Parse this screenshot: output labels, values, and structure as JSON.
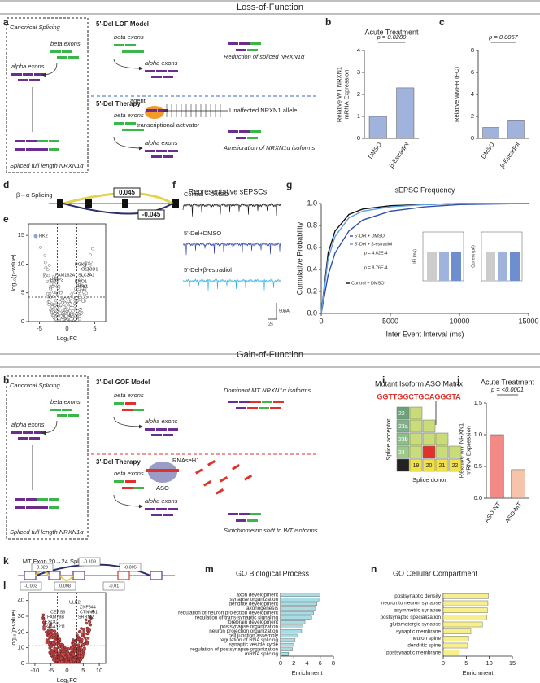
{
  "headers": {
    "lof": "Loss-of-Function",
    "gof": "Gain-of-Function"
  },
  "panel_labels": [
    "a",
    "b",
    "c",
    "d",
    "e",
    "f",
    "g",
    "h",
    "i",
    "j",
    "k",
    "l",
    "m",
    "n"
  ],
  "a": {
    "canonical": "Canonical Splicing",
    "beta1": "beta exons",
    "alpha1": "alpha exons",
    "full": "Spliced full length NRXN1α",
    "model": "5'-Del LOF Model",
    "beta2": "beta exons",
    "alpha2": "alpha exons",
    "reduction": "Reduction of spliced NRXN1α",
    "therapy": "5'-Del Therapy",
    "beta3": "beta exons",
    "agent": "agent",
    "activator": "transcriptional activator",
    "unaffected": "Unaffected NRXN1 allele",
    "alpha3": "alpha exons",
    "amelioration": "Amelioration of NRXN1α isoforms"
  },
  "b": {
    "type": "bar",
    "title": "Acute Treatment",
    "ylabel": [
      "Relative WT NRXN1",
      "mRNA Expression"
    ],
    "categories": [
      "DMSO",
      "β-Estradiol"
    ],
    "values": [
      1.0,
      2.3
    ],
    "colors": [
      "#9fb3dc",
      "#9fb3dc"
    ],
    "ylim": [
      0,
      4
    ],
    "yticks": [
      0,
      1,
      2,
      3,
      4
    ],
    "annotation": "p = 0.0280"
  },
  "c": {
    "type": "bar",
    "ylabel": [
      "Relative wMFR (FC)"
    ],
    "categories": [
      "DMSO",
      "β-Estradiol"
    ],
    "values": [
      1.0,
      1.6
    ],
    "colors": [
      "#9fb3dc",
      "#9fb3dc"
    ],
    "ylim": [
      0,
      8
    ],
    "yticks": [
      0,
      2,
      4,
      6,
      8
    ],
    "annotation": "p = 0.0057"
  },
  "d": {
    "title": "β→α Splicing",
    "values": [
      0.045,
      -0.045
    ]
  },
  "e": {
    "type": "volcano",
    "xlabel": "Log₂FC",
    "ylabel": "log₁₀(p-value)",
    "xlim": [
      -7,
      7
    ],
    "xticks": [
      -5,
      0,
      5
    ],
    "ylim": [
      0,
      17
    ],
    "yticks": [
      0,
      5,
      10,
      15
    ],
    "genes": [
      "HK2",
      "PGK1",
      "GLT8D1",
      "FAM162A",
      "BNIP3",
      "SLC2A1",
      "ENO1",
      "PDK1"
    ]
  },
  "f": {
    "title": "Representative sEPSCs",
    "traces": [
      "Control + DMSO",
      "5'-Del+DMSO",
      "5'-Del+β-estradiol"
    ],
    "scale_y": "50pA",
    "scale_x": "2s"
  },
  "g": {
    "type": "line",
    "title": "sEPSC Frequency",
    "xlabel": "Inter Event Interval (ms)",
    "ylabel": "Cumulative Probability",
    "x": [
      0,
      500,
      1000,
      2000,
      3000,
      5000,
      7500,
      10000,
      15000
    ],
    "series": [
      {
        "name": "Control + DMSO",
        "color": "#111111",
        "values": [
          0,
          0.55,
          0.75,
          0.9,
          0.95,
          0.98,
          0.99,
          1.0,
          1.0
        ]
      },
      {
        "name": "5'-Del + DMSO",
        "color": "#2f4fa8",
        "values": [
          0,
          0.35,
          0.55,
          0.75,
          0.85,
          0.93,
          0.97,
          0.99,
          1.0
        ]
      },
      {
        "name": "5'-Del + β-estradiol",
        "color": "#5aa0e0",
        "values": [
          0,
          0.5,
          0.7,
          0.87,
          0.93,
          0.97,
          0.99,
          1.0,
          1.0
        ]
      }
    ],
    "xlim": [
      0,
      15000
    ],
    "xticks": [
      0,
      5000,
      10000,
      15000
    ],
    "ylim": [
      0,
      1.0
    ],
    "yticks": [
      {
        "value": 0,
        "label": "0.0"
      },
      {
        "value": 0.2,
        "label": "0.2"
      },
      {
        "value": 0.4,
        "label": "0.4"
      },
      {
        "value": 0.6,
        "label": "0.6"
      },
      {
        "value": 0.8,
        "label": "0.8"
      },
      {
        "value": 1.0,
        "label": "1.0"
      }
    ],
    "annotations": [
      "p = 4.62E-4",
      "p = 8.76E-4"
    ],
    "inset_labels": [
      "IEI (ms)",
      "Current (pA)"
    ]
  },
  "h": {
    "canonical": "Canonical Splicing",
    "beta1": "beta exons",
    "alpha1": "alpha exons",
    "full": "Spliced full length NRXN1α",
    "model": "3'-Del GOF Model",
    "beta2": "beta exons",
    "alpha2": "alpha exons",
    "dominant": "Dominant MT NRXN1α isoforms",
    "therapy": "3'-Del Therapy",
    "beta3": "beta exons",
    "rnase": "RNAseH1",
    "aso": "ASO",
    "alpha3": "alpha exons",
    "shift": "Stoichiometric shift to WT isoforms"
  },
  "i": {
    "title": "Mutant Isoform ASO Matrix",
    "sequence": "GGTTGGCTGCAGGGTA",
    "acceptors": [
      "22",
      "23a",
      "23b",
      "24"
    ],
    "donors": [
      "19",
      "20",
      "21",
      "22"
    ],
    "ylabel": "Splice acceptor",
    "xlabel": "Splice donor"
  },
  "j": {
    "type": "bar",
    "title": "Acute Treatment",
    "ylabel": [
      "Relative MT NRXN1",
      "mRNA Expression"
    ],
    "categories": [
      "ASO-NT",
      "ASO-MT"
    ],
    "values": [
      1.0,
      0.45
    ],
    "colors": [
      "#f28b85",
      "#f5c4aa"
    ],
    "ylim": [
      0,
      1.5
    ],
    "yticks": [
      {
        "value": 0,
        "label": "0.0"
      },
      {
        "value": 0.5,
        "label": "0.5"
      },
      {
        "value": 1.0,
        "label": "1.0"
      },
      {
        "value": 1.5,
        "label": "1.5"
      }
    ],
    "annotation": "p = <0.0001"
  },
  "k": {
    "title": "MT Exon 20→24 Splicing",
    "values": [
      0.023,
      -0.109,
      -0.005,
      -0.003,
      0.098,
      -0.01
    ]
  },
  "l": {
    "type": "volcano",
    "xlabel": "Log₂FC",
    "ylabel": "log₁₀(p-value)",
    "xlim": [
      -12,
      12
    ],
    "xticks": [
      -10,
      -5,
      0,
      5,
      10
    ],
    "ylim": [
      0,
      45
    ],
    "yticks": [
      0,
      10,
      20,
      30,
      40
    ],
    "genes": [
      "ULK2",
      "ZNF844",
      "CERS6",
      "CTNNB1",
      "FAM78B",
      "EXOC7",
      "KIAA1211",
      "SRRM2"
    ]
  },
  "m": {
    "type": "hbar",
    "title": "GO Biological Process",
    "xlabel": "Enrichment",
    "categories": [
      "axon development",
      "synapse organization",
      "dendrite development",
      "axonogenesis",
      "regulation of neuron projection development",
      "regulation of trans-synaptic signaling",
      "forebrain development",
      "postsynapse organization",
      "neuron projection organization",
      "cell junction assembly",
      "regulation of RNA splicing",
      "synaptic vesicle cycle",
      "regulation of postsynapse organization",
      "mRNA splicing"
    ],
    "values": [
      6.0,
      5.8,
      5.5,
      5.3,
      5.0,
      4.7,
      3.7,
      3.4,
      3.2,
      2.5,
      2.2,
      2.0,
      1.8,
      1.2
    ],
    "color": "#a9dce3",
    "xlim": [
      0,
      8
    ],
    "xticks": [
      0,
      2,
      4,
      6,
      8
    ]
  },
  "n": {
    "type": "hbar",
    "title": "GO Cellular Compartment",
    "xlabel": "Enrichment",
    "categories": [
      "postsynaptic density",
      "neuron to neuron synapse",
      "asymmetric synapse",
      "postsynaptic specialization",
      "glutamatergic synapse",
      "synaptic membrane",
      "neuron spine",
      "dendritic spine",
      "postsynaptic membrane"
    ],
    "values": [
      9.8,
      9.7,
      9.6,
      9.5,
      8.5,
      6.0,
      5.5,
      5.3,
      3.5
    ],
    "color": "#f6ef8c",
    "xlim": [
      0,
      15
    ],
    "xticks": [
      0,
      5,
      10,
      15
    ]
  }
}
